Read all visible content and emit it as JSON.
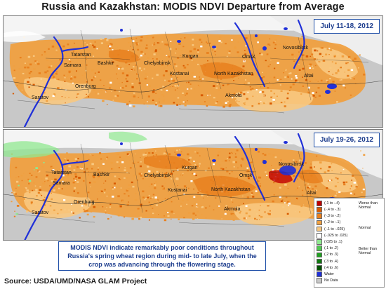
{
  "title": "Russia and Kazakhstan:  MODIS NDVI Departure from Average",
  "panels": [
    {
      "date_range": "July 11-18, 2012"
    },
    {
      "date_range": "July 19-26, 2012"
    }
  ],
  "cities": {
    "tatarstan": "Tatarstan",
    "samara": "Samara",
    "saratov": "Saratov",
    "bashkir": "Bashkir",
    "orenburg": "Orenburg",
    "chelyabinsk": "Chelyabinsk",
    "kurgan": "Kurgan",
    "kostanai": "Kostanai",
    "north_kazakhstan": "North Kazakhstan",
    "akmola": "Akmola",
    "omsk": "Omsk",
    "novosibirsk": "Novosibirsk",
    "altai": "Altai"
  },
  "legend": {
    "items": [
      {
        "label": "(-1 to -.4)",
        "color": "#c00000"
      },
      {
        "label": "(-.4 to -.3)",
        "color": "#d85a00"
      },
      {
        "label": "(-.3 to -.2)",
        "color": "#e8801e"
      },
      {
        "label": "(-.2 to -.1)",
        "color": "#f0a040"
      },
      {
        "label": "(-.1 to -.025)",
        "color": "#f8c880"
      },
      {
        "label": "(-.025 to .025)",
        "color": "#ffffff"
      },
      {
        "label": "(.025 to .1)",
        "color": "#90e890"
      },
      {
        "label": "(.1 to .2)",
        "color": "#50c850"
      },
      {
        "label": "(.2 to .3)",
        "color": "#20a020"
      },
      {
        "label": "(.3 to .4)",
        "color": "#107810"
      },
      {
        "label": "(.4 to .6)",
        "color": "#005000"
      },
      {
        "label": "Water",
        "color": "#2030d8"
      },
      {
        "label": "No Data",
        "color": "#c8c8c8"
      }
    ],
    "worse_label": "Worse than Normal",
    "normal_label": "Normal",
    "better_label": "Better than Normal"
  },
  "note": "MODIS NDVI indicate remarkably poor conditions throughout Russia's spring wheat region during mid- to late July, when the crop was advancing through the flowering stage.",
  "source": "Source:  USDA/UMD/NASA GLAM Project",
  "colors": {
    "background_gray": "#c8c8c8",
    "border_blue": "#1f4fa8",
    "text_blue": "#1f3f8f"
  }
}
